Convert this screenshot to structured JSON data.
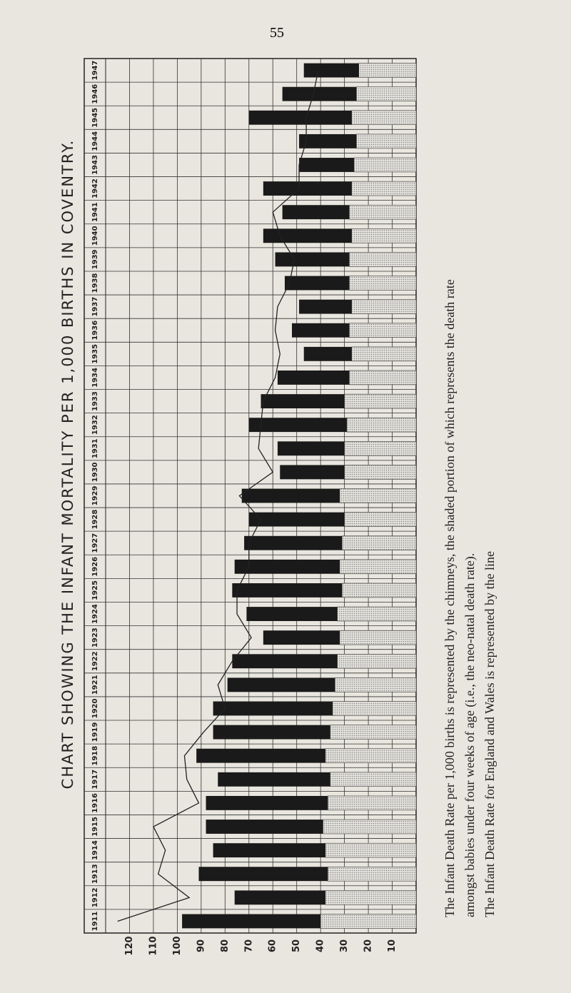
{
  "page_number": "55",
  "caption": [
    "The Infant Death Rate per 1,000 births is represented by the chimneys, the shaded portion of which represents the death rate",
    "amongst babies under four weeks of age (i.e., the neo-natal death rate).",
    "The Infant Death Rate for England and Wales is represented by the line"
  ],
  "chart_data": {
    "type": "chimney",
    "title": "CHART SHOWING THE INFANT MORTALITY PER 1,000 BIRTHS IN COVENTRY.",
    "categories": [
      "1911",
      "1912",
      "1913",
      "1914",
      "1915",
      "1916",
      "1917",
      "1918",
      "1919",
      "1920",
      "1921",
      "1922",
      "1923",
      "1924",
      "1925",
      "1926",
      "1927",
      "1928",
      "1929",
      "1930",
      "1931",
      "1932",
      "1933",
      "1934",
      "1935",
      "1936",
      "1937",
      "1938",
      "1939",
      "1940",
      "1941",
      "1942",
      "1943",
      "1944",
      "1945",
      "1946",
      "1947"
    ],
    "series": [
      {
        "color": "#1a1a1a",
        "values": [
          98,
          76,
          91,
          85,
          88,
          88,
          83,
          92,
          85,
          85,
          79,
          77,
          64,
          71,
          77,
          76,
          72,
          70,
          73,
          57,
          58,
          70,
          65,
          58,
          47,
          52,
          49,
          55,
          59,
          64,
          56,
          64,
          49,
          49,
          70,
          56,
          47
        ]
      },
      {
        "color": "#c8c8c8",
        "values": [
          40,
          38,
          37,
          38,
          39,
          37,
          36,
          38,
          36,
          35,
          34,
          33,
          32,
          33,
          31,
          32,
          31,
          30,
          32,
          30,
          30,
          29,
          30,
          28,
          27,
          28,
          27,
          28,
          28,
          27,
          28,
          27,
          26,
          25,
          27,
          25,
          24
        ]
      },
      {
        "color": "#222222",
        "values": [
          125,
          95,
          108,
          105,
          110,
          91,
          96,
          97,
          89,
          80,
          83,
          77,
          69,
          75,
          75,
          70,
          70,
          65,
          74,
          60,
          66,
          65,
          64,
          59,
          57,
          59,
          58,
          53,
          51,
          57,
          60,
          49,
          49,
          46,
          46,
          43,
          41
        ]
      }
    ],
    "xlim": [
      0,
      130
    ],
    "xticks": [
      10,
      20,
      30,
      40,
      50,
      60,
      70,
      80,
      90,
      100,
      110,
      120
    ],
    "grid": true
  }
}
